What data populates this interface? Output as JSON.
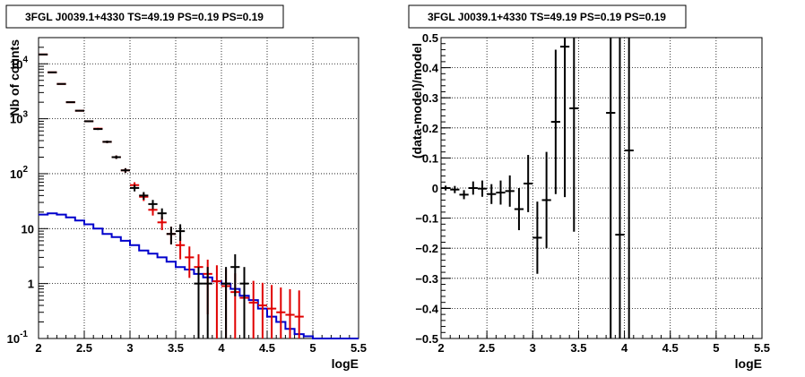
{
  "colors": {
    "data": "#000000",
    "model": "#e00000",
    "source": "#0000cc",
    "grid": "#000000",
    "background": "#ffffff"
  },
  "chart_data": [
    {
      "type": "line",
      "title": "3FGL J0039.1+4330 TS=49.19 PS=0.19 PS=0.19",
      "xlabel": "logE",
      "ylabel": "Nb of counts",
      "xlim": [
        2,
        5.5
      ],
      "ylim": [
        0.1,
        30000
      ],
      "y_scale": "log",
      "grid": true,
      "x_ticks": [
        "2",
        "2.5",
        "3",
        "3.5",
        "4",
        "4.5",
        "5",
        "5.5"
      ],
      "y_ticks": [
        {
          "value": 0.1,
          "mant": "10",
          "exp": "-1"
        },
        {
          "value": 1,
          "mant": "1",
          "exp": ""
        },
        {
          "value": 10,
          "mant": "10",
          "exp": ""
        },
        {
          "value": 100,
          "mant": "10",
          "exp": "2"
        },
        {
          "value": 1000,
          "mant": "10",
          "exp": "3"
        },
        {
          "value": 10000,
          "mant": "10",
          "exp": "4"
        }
      ],
      "bin_width": 0.1,
      "x": [
        2.05,
        2.15,
        2.25,
        2.35,
        2.45,
        2.55,
        2.65,
        2.75,
        2.85,
        2.95,
        3.05,
        3.15,
        3.25,
        3.35,
        3.45,
        3.55,
        3.65,
        3.75,
        3.85,
        3.95,
        4.05,
        4.15,
        4.25,
        4.35,
        4.45,
        4.55,
        4.65,
        4.75,
        4.85,
        4.95,
        5.05,
        5.15,
        5.25,
        5.35,
        5.45
      ],
      "series": [
        {
          "name": "data",
          "points": [
            {
              "x": 2.05,
              "y": 14800
            },
            {
              "x": 2.15,
              "y": 7000
            },
            {
              "x": 2.25,
              "y": 4300
            },
            {
              "x": 2.35,
              "y": 2000
            },
            {
              "x": 2.45,
              "y": 1400
            },
            {
              "x": 2.55,
              "y": 900
            },
            {
              "x": 2.65,
              "y": 650
            },
            {
              "x": 2.75,
              "y": 380
            },
            {
              "x": 2.85,
              "y": 200
            },
            {
              "x": 2.95,
              "y": 115
            },
            {
              "x": 3.05,
              "y": 55
            },
            {
              "x": 3.15,
              "y": 40
            },
            {
              "x": 3.25,
              "y": 28
            },
            {
              "x": 3.35,
              "y": 19
            },
            {
              "x": 3.45,
              "y": 8
            },
            {
              "x": 3.55,
              "y": 9
            },
            {
              "x": 3.75,
              "y": 1
            },
            {
              "x": 3.85,
              "y": 1
            },
            {
              "x": 4.05,
              "y": 1
            },
            {
              "x": 4.15,
              "y": 2
            },
            {
              "x": 4.25,
              "y": 1
            }
          ]
        },
        {
          "name": "model",
          "points": [
            {
              "x": 2.05,
              "y": 14800
            },
            {
              "x": 2.15,
              "y": 7000
            },
            {
              "x": 2.25,
              "y": 4300
            },
            {
              "x": 2.35,
              "y": 2000
            },
            {
              "x": 2.45,
              "y": 1400
            },
            {
              "x": 2.55,
              "y": 900
            },
            {
              "x": 2.65,
              "y": 660
            },
            {
              "x": 2.75,
              "y": 380
            },
            {
              "x": 2.85,
              "y": 200
            },
            {
              "x": 2.95,
              "y": 115
            },
            {
              "x": 3.05,
              "y": 62
            },
            {
              "x": 3.15,
              "y": 38
            },
            {
              "x": 3.25,
              "y": 22
            },
            {
              "x": 3.35,
              "y": 13
            },
            {
              "x": 3.45,
              "y": 8
            },
            {
              "x": 3.55,
              "y": 5
            },
            {
              "x": 3.65,
              "y": 3
            },
            {
              "x": 3.75,
              "y": 2
            },
            {
              "x": 3.85,
              "y": 1.5
            },
            {
              "x": 3.95,
              "y": 1.1
            },
            {
              "x": 4.05,
              "y": 0.9
            },
            {
              "x": 4.15,
              "y": 0.7
            },
            {
              "x": 4.25,
              "y": 0.55
            },
            {
              "x": 4.35,
              "y": 0.45
            },
            {
              "x": 4.45,
              "y": 0.4
            },
            {
              "x": 4.55,
              "y": 0.35
            },
            {
              "x": 4.65,
              "y": 0.3
            },
            {
              "x": 4.75,
              "y": 0.27
            },
            {
              "x": 4.85,
              "y": 0.25
            }
          ]
        },
        {
          "name": "source",
          "steps": [
            18,
            19,
            18,
            16,
            14,
            12,
            10,
            8,
            7,
            6,
            5,
            4,
            3.5,
            3,
            2.5,
            2,
            1.8,
            1.5,
            1.3,
            1.1,
            1.0,
            0.8,
            0.6,
            0.5,
            0.35,
            0.25,
            0.2,
            0.15,
            0.12,
            0.11,
            0.1,
            0.1,
            0.1,
            0.1,
            0.1
          ]
        }
      ]
    },
    {
      "type": "scatter",
      "title": "3FGL J0039.1+4330 TS=49.19 PS=0.19 PS=0.19",
      "xlabel": "logE",
      "ylabel": "(data-model)/model",
      "xlim": [
        2,
        5.5
      ],
      "ylim": [
        -0.5,
        0.5
      ],
      "grid": true,
      "x_ticks": [
        "2",
        "2.5",
        "3",
        "3.5",
        "4",
        "4.5",
        "5",
        "5.5"
      ],
      "y_ticks": [
        "−0.5",
        "−0.4",
        "−0.3",
        "−0.2",
        "−0.1",
        "0",
        "0.1",
        "0.2",
        "0.3",
        "0.4",
        "0.5"
      ],
      "y_tick_values": [
        -0.5,
        -0.4,
        -0.3,
        -0.2,
        -0.1,
        0,
        0.1,
        0.2,
        0.3,
        0.4,
        0.5
      ],
      "bin_width": 0.1,
      "points": [
        {
          "x": 2.05,
          "y": 0.0,
          "err": 0.008
        },
        {
          "x": 2.15,
          "y": -0.005,
          "err": 0.012
        },
        {
          "x": 2.25,
          "y": -0.022,
          "err": 0.015
        },
        {
          "x": 2.35,
          "y": 0.0,
          "err": 0.022
        },
        {
          "x": 2.45,
          "y": -0.002,
          "err": 0.027
        },
        {
          "x": 2.55,
          "y": -0.02,
          "err": 0.033
        },
        {
          "x": 2.65,
          "y": -0.015,
          "err": 0.04
        },
        {
          "x": 2.75,
          "y": -0.01,
          "err": 0.052
        },
        {
          "x": 2.85,
          "y": -0.07,
          "err": 0.07
        },
        {
          "x": 2.95,
          "y": 0.015,
          "err": 0.095
        },
        {
          "x": 3.05,
          "y": -0.165,
          "err": 0.12
        },
        {
          "x": 3.15,
          "y": -0.04,
          "err": 0.16
        },
        {
          "x": 3.25,
          "y": 0.22,
          "err": 0.24
        },
        {
          "x": 3.35,
          "y": 0.47,
          "err": 0.5
        },
        {
          "x": 3.45,
          "y": 0.265,
          "err": 0.41
        },
        {
          "x": 3.85,
          "y": 0.25,
          "err": 1.0
        },
        {
          "x": 3.95,
          "y": -0.155,
          "err": 1.0
        },
        {
          "x": 4.05,
          "y": 0.125,
          "err": 1.0
        }
      ]
    }
  ]
}
